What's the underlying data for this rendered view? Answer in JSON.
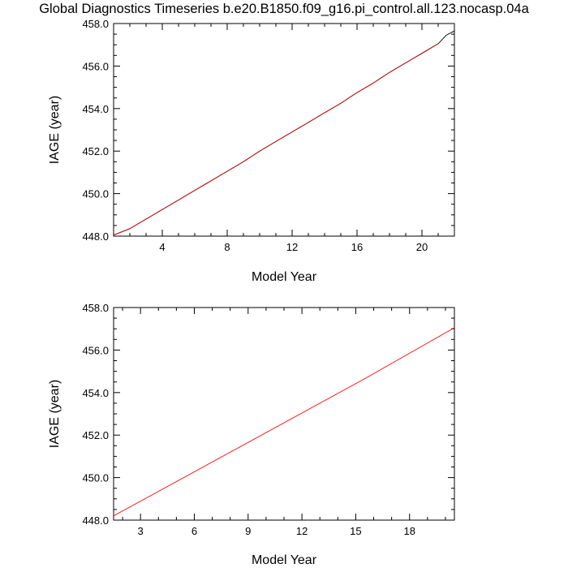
{
  "title": "Global Diagnostics Timeseries b.e20.B1850.f09_g16.pi_control.all.123.nocasp.04a",
  "chart_data": [
    {
      "type": "line",
      "xlabel": "Model Year",
      "ylabel": "IAGE (year)",
      "xlim": [
        1,
        22
      ],
      "ylim": [
        448.0,
        458.0
      ],
      "xticks": [
        4,
        8,
        12,
        16,
        20
      ],
      "yticks": [
        "448.0",
        "450.0",
        "452.0",
        "454.0",
        "456.0",
        "458.0"
      ],
      "grid": false,
      "series": [
        {
          "color": "#000000",
          "x": [
            1.0,
            2.0,
            3.0,
            4.0,
            5.0,
            6.0,
            7.0,
            8.0,
            9.0,
            10.0,
            11.0,
            12.0,
            13.0,
            14.0,
            15.0,
            16.0,
            17.0,
            18.0,
            19.0,
            20.0,
            21.0,
            21.5,
            22.0
          ],
          "y": [
            448.05,
            448.35,
            448.8,
            449.25,
            449.7,
            450.15,
            450.6,
            451.05,
            451.5,
            452.0,
            452.45,
            452.9,
            453.35,
            453.8,
            454.25,
            454.75,
            455.2,
            455.7,
            456.15,
            456.6,
            457.05,
            457.45,
            457.65
          ]
        },
        {
          "color": "#cc0000",
          "x": [
            1.0,
            2.0,
            3.0,
            4.0,
            5.0,
            6.0,
            7.0,
            8.0,
            9.0,
            10.0,
            11.0,
            12.0,
            13.0,
            14.0,
            15.0,
            16.0,
            17.0,
            18.0,
            19.0,
            20.0,
            21.0
          ],
          "y": [
            448.05,
            448.35,
            448.8,
            449.25,
            449.7,
            450.15,
            450.6,
            451.05,
            451.5,
            452.0,
            452.45,
            452.9,
            453.35,
            453.8,
            454.25,
            454.75,
            455.2,
            455.7,
            456.15,
            456.6,
            457.05
          ]
        }
      ]
    },
    {
      "type": "line",
      "xlabel": "Model Year",
      "ylabel": "IAGE (year)",
      "xlim": [
        1.5,
        20.5
      ],
      "ylim": [
        448.0,
        458.0
      ],
      "xticks": [
        3,
        6,
        9,
        12,
        15,
        18
      ],
      "yticks": [
        "448.0",
        "450.0",
        "452.0",
        "454.0",
        "456.0",
        "458.0"
      ],
      "grid": false,
      "series": [
        {
          "color": "#ff0000",
          "x": [
            1.5,
            15.5,
            20.5
          ],
          "y": [
            448.2,
            454.65,
            457.05
          ]
        }
      ]
    }
  ]
}
